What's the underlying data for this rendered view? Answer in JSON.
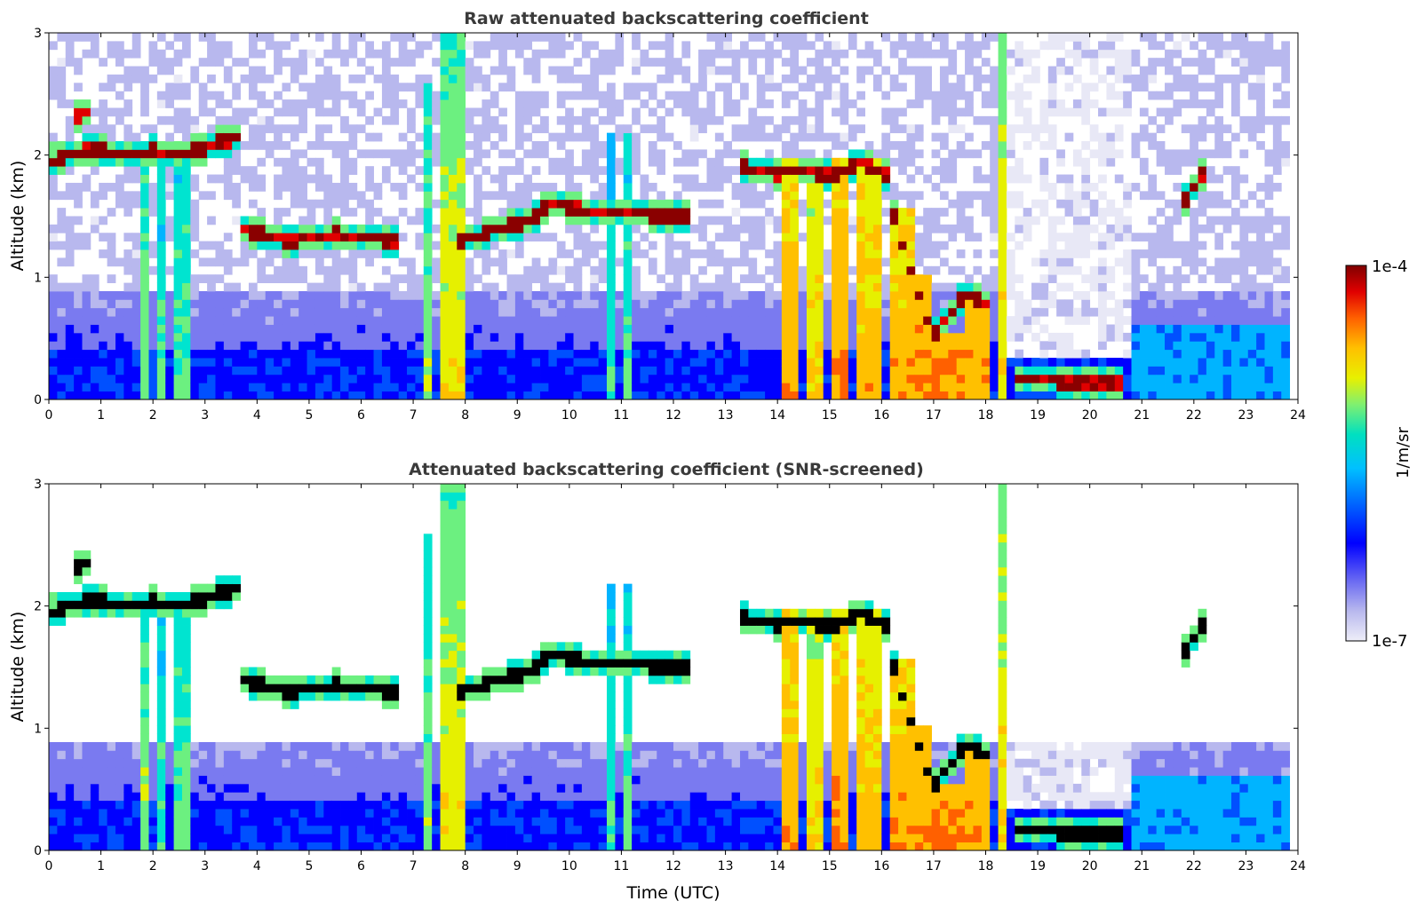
{
  "chart_data": [
    {
      "type": "heatmap",
      "title": "Raw attenuated backscattering coefficient",
      "xlabel": "",
      "ylabel": "Altitude (km)",
      "xlim": [
        0,
        24
      ],
      "ylim": [
        0,
        3
      ],
      "xticks": [
        "0",
        "1",
        "2",
        "3",
        "4",
        "5",
        "6",
        "7",
        "8",
        "9",
        "10",
        "11",
        "12",
        "13",
        "14",
        "15",
        "16",
        "17",
        "18",
        "19",
        "20",
        "21",
        "22",
        "23",
        "24"
      ],
      "yticks": [
        "0",
        "1",
        "2",
        "3"
      ],
      "layers": [
        {
          "x": [
            0.0,
            0.8,
            1.3,
            2.0,
            2.7,
            3.6
          ],
          "y": [
            1.95,
            2.05,
            2.02,
            2.03,
            2.02,
            2.15
          ],
          "level": "high"
        },
        {
          "x": [
            0.55,
            0.85
          ],
          "y": [
            2.33,
            2.38
          ],
          "level": "high"
        },
        {
          "x": [
            3.6,
            4.5,
            5.5,
            6.7
          ],
          "y": [
            1.42,
            1.3,
            1.35,
            1.3
          ],
          "level": "high"
        },
        {
          "x": [
            7.9,
            8.5,
            9.3,
            9.7,
            10.4,
            11.0,
            12.0,
            12.3
          ],
          "y": [
            1.3,
            1.38,
            1.48,
            1.62,
            1.52,
            1.55,
            1.48,
            1.52
          ],
          "level": "high"
        },
        {
          "x": [
            13.3,
            14.0,
            14.4,
            15.0,
            15.6,
            16.1
          ],
          "y": [
            1.9,
            1.85,
            1.9,
            1.82,
            1.95,
            1.85
          ],
          "level": "high"
        },
        {
          "x": [
            16.2,
            16.6,
            17.0,
            17.6,
            18.0
          ],
          "y": [
            1.55,
            1.0,
            0.52,
            0.85,
            0.8
          ],
          "level": "high"
        },
        {
          "x": [
            18.5,
            19.0,
            19.8,
            20.6
          ],
          "y": [
            0.17,
            0.18,
            0.12,
            0.15
          ],
          "level": "high"
        },
        {
          "x": [
            21.7,
            22.2
          ],
          "y": [
            1.55,
            1.85
          ],
          "level": "high"
        }
      ],
      "colorbar": {
        "label": "1/m/sr",
        "min_label": "1e-7",
        "max_label": "1e-4",
        "scale": "log"
      }
    },
    {
      "type": "heatmap",
      "title": "Attenuated backscattering coefficient (SNR-screened)",
      "xlabel": "Time (UTC)",
      "ylabel": "Altitude (km)",
      "xlim": [
        0,
        24
      ],
      "ylim": [
        0,
        3
      ],
      "xticks": [
        "0",
        "1",
        "2",
        "3",
        "4",
        "5",
        "6",
        "7",
        "8",
        "9",
        "10",
        "11",
        "12",
        "13",
        "14",
        "15",
        "16",
        "17",
        "18",
        "19",
        "20",
        "21",
        "22",
        "23",
        "24"
      ],
      "yticks": [
        "0",
        "1",
        "2",
        "3"
      ],
      "screening": "pixels below SNR threshold are left blank",
      "colorbar": {
        "label": "1/m/sr",
        "min_label": "1e-7",
        "max_label": "1e-4",
        "scale": "log"
      }
    }
  ],
  "colors": {
    "colormap": [
      "#e8e8f6",
      "#b8b8ee",
      "#7a7af0",
      "#0000ff",
      "#0050ff",
      "#00b4ff",
      "#00e4d0",
      "#6cf080",
      "#e6f000",
      "#ffc000",
      "#ff6000",
      "#e00000",
      "#8a0000"
    ],
    "title_text": "#3a3a3a"
  }
}
